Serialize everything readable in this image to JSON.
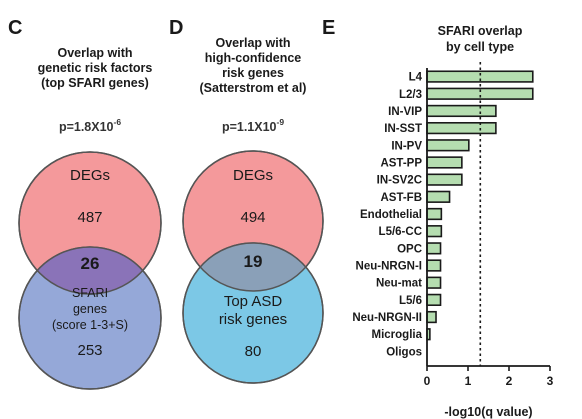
{
  "panels": [
    {
      "letter": "C",
      "title": [
        "Overlap with",
        "genetic risk factors",
        "(top SFARI genes)"
      ],
      "pvalue_base": "p=1.8X10",
      "pvalue_exp": "-6",
      "top_circle": {
        "label_lines": [
          "DEGs"
        ],
        "count": "487",
        "color": "#f4999b"
      },
      "intersection": "26",
      "bottom_circle": {
        "label_lines": [
          "SFARI",
          "genes",
          "(score 1-3+S)"
        ],
        "count": "253",
        "color": "#95a8d8"
      },
      "intersection_color": "#8a73b8"
    },
    {
      "letter": "D",
      "title": [
        "Overlap with",
        "high-confidence",
        "risk genes",
        "(Satterstrom et al)"
      ],
      "pvalue_base": "p=1.1X10",
      "pvalue_exp": "-9",
      "top_circle": {
        "label_lines": [
          "DEGs"
        ],
        "count": "494",
        "color": "#f4999b"
      },
      "intersection": "19",
      "bottom_circle": {
        "label_lines": [
          "Top ASD",
          "risk genes"
        ],
        "count": "80",
        "color": "#7cc8e6"
      },
      "intersection_color": "#8aa0b8"
    }
  ],
  "chart_data": {
    "type": "bar",
    "orientation": "horizontal",
    "panel_letter": "E",
    "title_lines": [
      "SFARI overlap",
      "by cell type"
    ],
    "xlabel": "-log10(q value)",
    "ylabel": "",
    "categories": [
      "L4",
      "L2/3",
      "IN-VIP",
      "IN-SST",
      "IN-PV",
      "AST-PP",
      "IN-SV2C",
      "AST-FB",
      "Endothelial",
      "L5/6-CC",
      "OPC",
      "Neu-NRGN-I",
      "Neu-mat",
      "L5/6",
      "Neu-NRGN-II",
      "Microglia",
      "Oligos"
    ],
    "values": [
      2.58,
      2.58,
      1.68,
      1.68,
      1.02,
      0.85,
      0.85,
      0.55,
      0.35,
      0.35,
      0.33,
      0.33,
      0.33,
      0.33,
      0.22,
      0.07,
      0.0
    ],
    "xlim": [
      0,
      3
    ],
    "xticks": [
      "0",
      "1",
      "2",
      "3"
    ],
    "threshold_line": 1.3,
    "bar_color": "#b5ddb0",
    "grid": false
  }
}
